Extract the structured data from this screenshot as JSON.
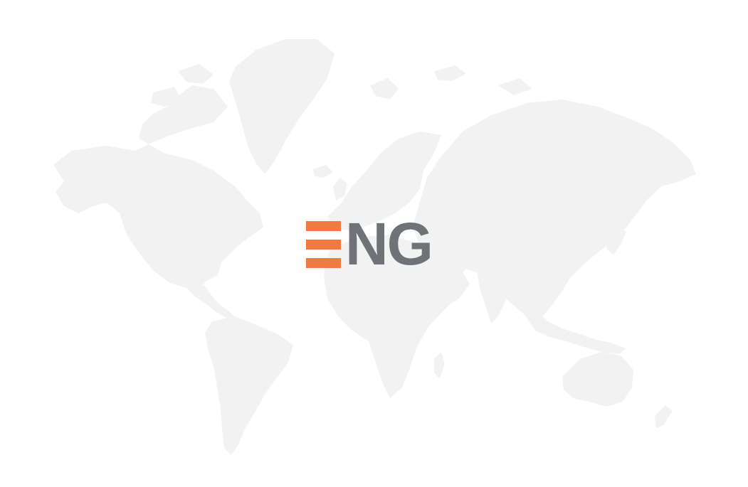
{
  "logo": {
    "text": "NG",
    "bars_letter": "E",
    "colors": {
      "accent": "#ef7b43",
      "text": "#6f7276"
    }
  },
  "background": {
    "name": "world-map",
    "land_color": "#f2f2f2",
    "page_color": "#ffffff"
  }
}
